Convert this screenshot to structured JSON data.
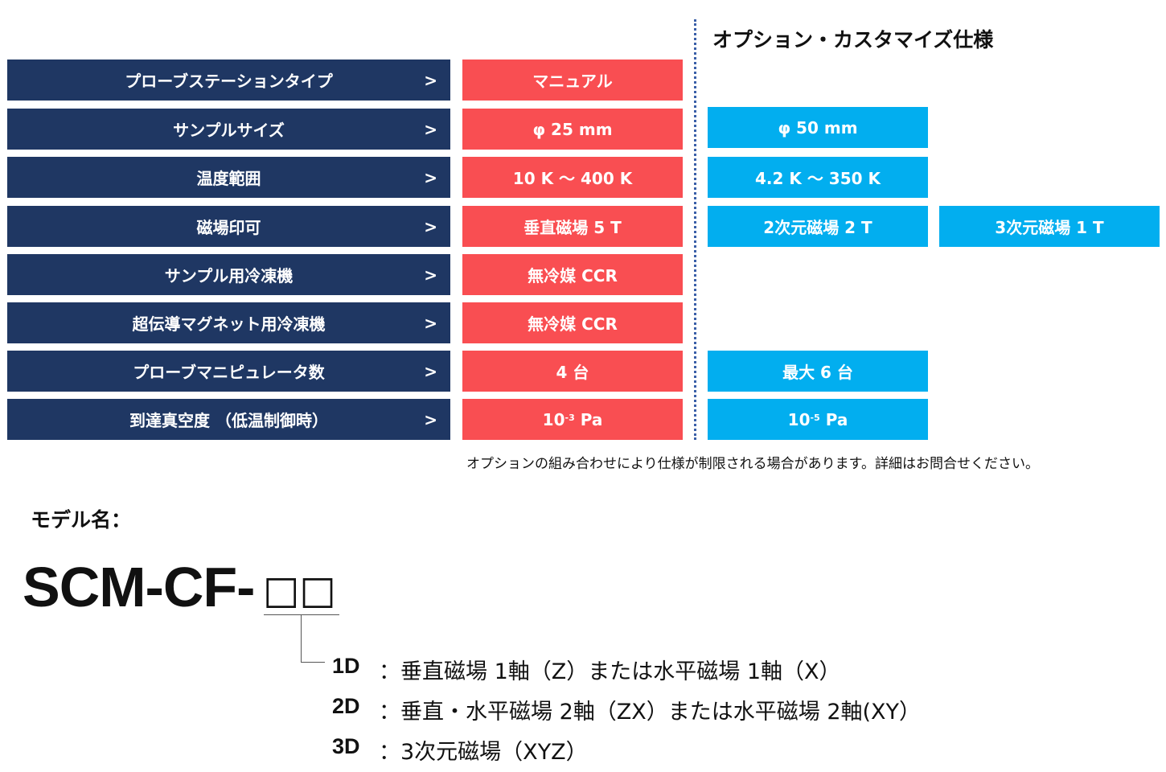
{
  "option_heading": "オプション・カスタマイズ仕様",
  "arrow_glyph": ">",
  "rows": [
    {
      "label": "プローブステーションタイプ",
      "standard": "マニュアル"
    },
    {
      "label": "サンプルサイズ",
      "standard": "φ 25 mm",
      "option1": "φ 50 mm"
    },
    {
      "label": "温度範囲",
      "standard": "10 K 〜 400 K",
      "option1": "4.2 K 〜 350 K"
    },
    {
      "label": "磁場印可",
      "standard": "垂直磁場 5 T",
      "option1": "2次元磁場 2 T",
      "option2": "3次元磁場 1 T"
    },
    {
      "label": "サンプル用冷凍機",
      "standard": "無冷媒 CCR"
    },
    {
      "label": "超伝導マグネット用冷凍機",
      "standard": "無冷媒 CCR"
    },
    {
      "label": "プローブマニピュレータ数",
      "standard": "4 台",
      "option1": "最大 6 台"
    },
    {
      "label": "到達真空度 （低温制御時）",
      "standard_base": "10",
      "standard_exp": "-3",
      "standard_unit": " Pa",
      "option1_base": "10",
      "option1_exp": "-5",
      "option1_unit": " Pa"
    }
  ],
  "note": "オプションの組み合わせにより仕様が制限される場合があります。詳細はお問合せください。",
  "model_label": "モデル名：",
  "model_name": "SCM-CF-",
  "model_boxes": "□□",
  "model_codes": [
    {
      "code": "1D",
      "desc": "：垂直磁場 1軸（Z）または水平磁場 1軸（X）"
    },
    {
      "code": "2D",
      "desc": "：垂直・水平磁場 2軸（ZX）または水平磁場 2軸(XY）"
    },
    {
      "code": "3D",
      "desc": "：3次元磁場（XYZ）"
    }
  ],
  "colors": {
    "label_bg": "#1f3763",
    "standard_bg": "#f94e52",
    "option_bg": "#02aeef"
  }
}
